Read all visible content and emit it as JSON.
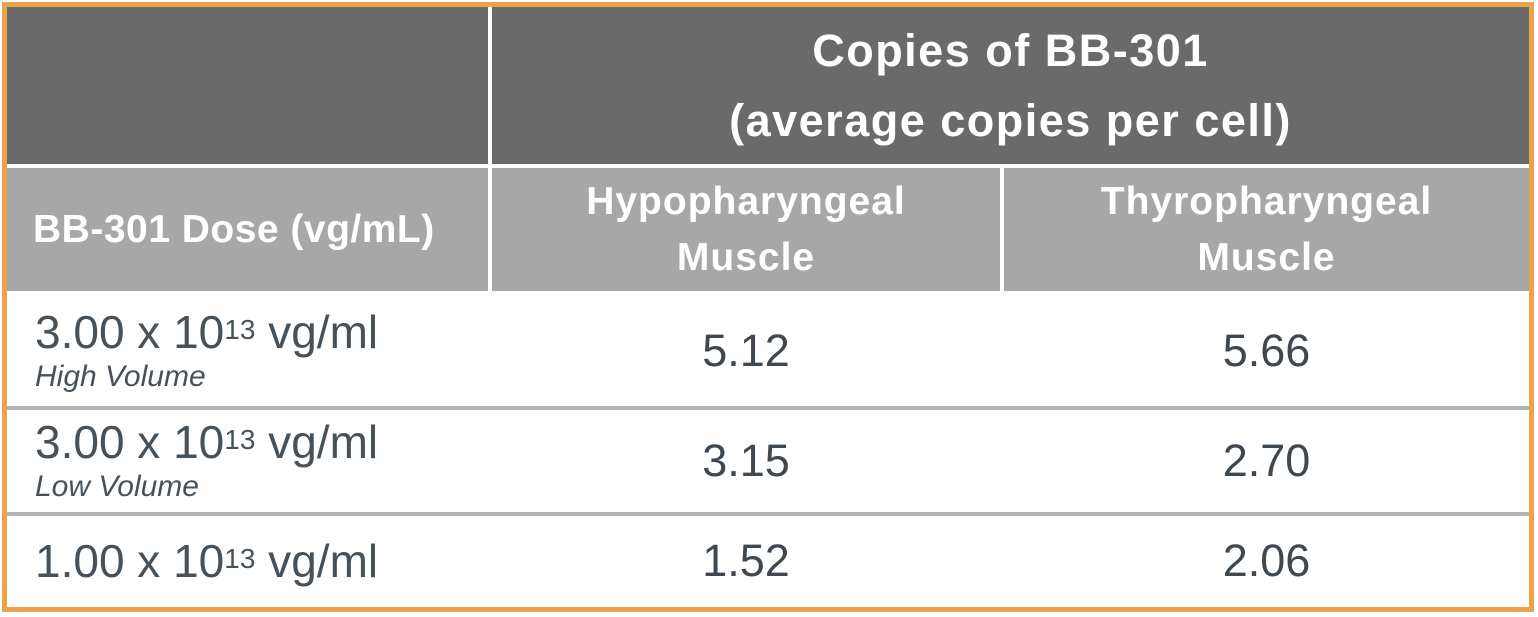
{
  "colors": {
    "border-orange": "#E9A44A",
    "header-dark": "#6A6A6A",
    "header-mid": "#A7A7A7",
    "divider-gray": "#B3B3B3",
    "text-dose": "#47515A",
    "text-value": "#3F4750",
    "text-header": "#FFFFFF"
  },
  "header": {
    "title_line1": "Copies of BB-301",
    "title_line2": "(average copies per cell)",
    "dose_column_label": "BB-301 Dose (vg/mL)",
    "col_hypo_line1": "Hypopharyngeal",
    "col_hypo_line2": "Muscle",
    "col_thyro_line1": "Thyropharyngeal",
    "col_thyro_line2": "Muscle"
  },
  "rows": [
    {
      "dose_base": "3.00 x 10",
      "dose_exp": "13",
      "dose_unit": " vg/ml",
      "volume": "High Volume",
      "hypopharyngeal": "5.12",
      "thyropharyngeal": "5.66"
    },
    {
      "dose_base": "3.00 x 10",
      "dose_exp": "13",
      "dose_unit": " vg/ml",
      "volume": "Low Volume",
      "hypopharyngeal": "3.15",
      "thyropharyngeal": "2.70"
    },
    {
      "dose_base": "1.00 x 10",
      "dose_exp": "13",
      "dose_unit": " vg/ml",
      "volume": "",
      "hypopharyngeal": "1.52",
      "thyropharyngeal": "2.06"
    }
  ],
  "chart_data": {
    "type": "table",
    "title": "Copies of BB-301 (average copies per cell)",
    "columns": [
      "BB-301 Dose (vg/mL)",
      "Hypopharyngeal Muscle",
      "Thyropharyngeal Muscle"
    ],
    "rows": [
      [
        "3.00 x 10^13 vg/ml (High Volume)",
        5.12,
        5.66
      ],
      [
        "3.00 x 10^13 vg/ml (Low Volume)",
        3.15,
        2.7
      ],
      [
        "1.00 x 10^13 vg/ml",
        1.52,
        2.06
      ]
    ]
  }
}
